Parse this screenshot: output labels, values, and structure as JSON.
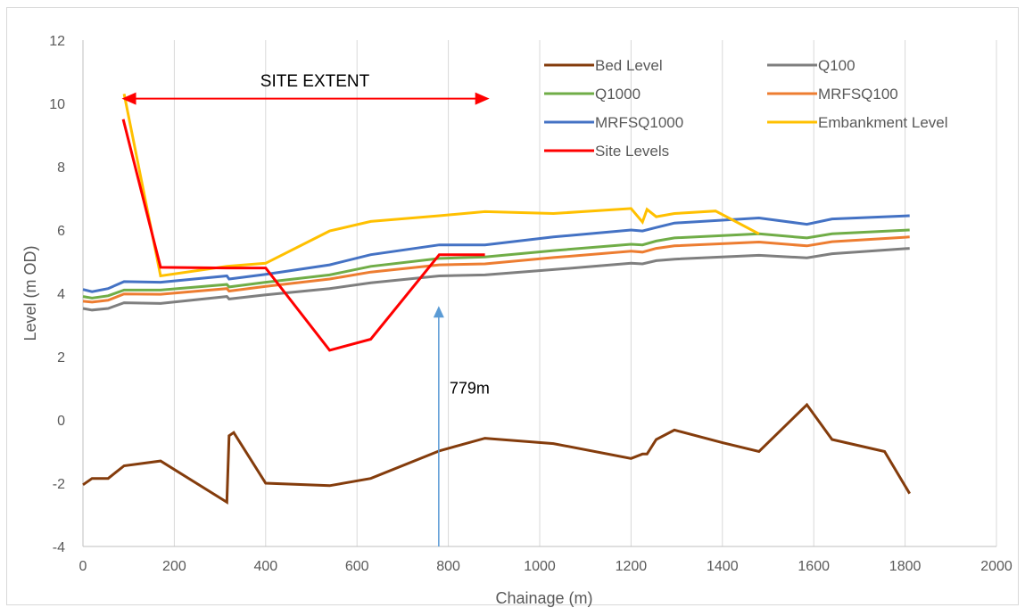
{
  "chart_data": {
    "type": "line",
    "xlabel": "Chainage (m)",
    "ylabel": "Level (m OD)",
    "xlim": [
      0,
      2000
    ],
    "ylim": [
      -4,
      12
    ],
    "x_ticks": [
      0,
      200,
      400,
      600,
      800,
      1000,
      1200,
      1400,
      1600,
      1800,
      2000
    ],
    "y_ticks": [
      -4,
      -2,
      0,
      2,
      4,
      6,
      8,
      10,
      12
    ],
    "grid": "vertical",
    "legend_placement": "top-right",
    "series": [
      {
        "name": "Bed Level",
        "color": "#843c0c",
        "points": [
          [
            0,
            -2.05
          ],
          [
            20,
            -1.85
          ],
          [
            55,
            -1.85
          ],
          [
            90,
            -1.45
          ],
          [
            170,
            -1.3
          ],
          [
            315,
            -2.6
          ],
          [
            320,
            -0.5
          ],
          [
            330,
            -0.4
          ],
          [
            400,
            -2.0
          ],
          [
            540,
            -2.08
          ],
          [
            630,
            -1.85
          ],
          [
            780,
            -0.98
          ],
          [
            880,
            -0.58
          ],
          [
            1030,
            -0.75
          ],
          [
            1200,
            -1.22
          ],
          [
            1225,
            -1.08
          ],
          [
            1235,
            -1.08
          ],
          [
            1255,
            -0.62
          ],
          [
            1295,
            -0.32
          ],
          [
            1400,
            -0.72
          ],
          [
            1480,
            -1.0
          ],
          [
            1585,
            0.48
          ],
          [
            1640,
            -0.62
          ],
          [
            1755,
            -1.0
          ],
          [
            1810,
            -2.33
          ]
        ]
      },
      {
        "name": "Q100",
        "color": "#7f7f7f",
        "points": [
          [
            0,
            3.52
          ],
          [
            20,
            3.47
          ],
          [
            55,
            3.52
          ],
          [
            90,
            3.7
          ],
          [
            170,
            3.68
          ],
          [
            315,
            3.9
          ],
          [
            320,
            3.82
          ],
          [
            400,
            3.95
          ],
          [
            540,
            4.15
          ],
          [
            630,
            4.33
          ],
          [
            780,
            4.55
          ],
          [
            880,
            4.58
          ],
          [
            1030,
            4.75
          ],
          [
            1200,
            4.95
          ],
          [
            1225,
            4.93
          ],
          [
            1255,
            5.03
          ],
          [
            1295,
            5.08
          ],
          [
            1480,
            5.2
          ],
          [
            1585,
            5.12
          ],
          [
            1640,
            5.25
          ],
          [
            1810,
            5.42
          ]
        ]
      },
      {
        "name": "Q1000",
        "color": "#70ad47",
        "points": [
          [
            0,
            3.9
          ],
          [
            20,
            3.85
          ],
          [
            55,
            3.92
          ],
          [
            90,
            4.1
          ],
          [
            170,
            4.1
          ],
          [
            315,
            4.28
          ],
          [
            320,
            4.2
          ],
          [
            400,
            4.35
          ],
          [
            540,
            4.58
          ],
          [
            630,
            4.85
          ],
          [
            780,
            5.1
          ],
          [
            880,
            5.15
          ],
          [
            1030,
            5.35
          ],
          [
            1200,
            5.55
          ],
          [
            1225,
            5.53
          ],
          [
            1255,
            5.65
          ],
          [
            1295,
            5.75
          ],
          [
            1480,
            5.88
          ],
          [
            1585,
            5.75
          ],
          [
            1640,
            5.88
          ],
          [
            1810,
            6.0
          ]
        ]
      },
      {
        "name": "MRFSQ100",
        "color": "#ed7d31",
        "points": [
          [
            0,
            3.75
          ],
          [
            20,
            3.72
          ],
          [
            55,
            3.78
          ],
          [
            90,
            3.98
          ],
          [
            170,
            3.97
          ],
          [
            315,
            4.15
          ],
          [
            320,
            4.07
          ],
          [
            400,
            4.22
          ],
          [
            540,
            4.45
          ],
          [
            630,
            4.67
          ],
          [
            780,
            4.9
          ],
          [
            880,
            4.93
          ],
          [
            1030,
            5.13
          ],
          [
            1200,
            5.33
          ],
          [
            1225,
            5.3
          ],
          [
            1255,
            5.42
          ],
          [
            1295,
            5.5
          ],
          [
            1480,
            5.62
          ],
          [
            1585,
            5.5
          ],
          [
            1640,
            5.63
          ],
          [
            1810,
            5.78
          ]
        ]
      },
      {
        "name": "MRFSQ1000",
        "color": "#4472c4",
        "points": [
          [
            0,
            4.12
          ],
          [
            20,
            4.05
          ],
          [
            55,
            4.15
          ],
          [
            90,
            4.37
          ],
          [
            170,
            4.35
          ],
          [
            315,
            4.55
          ],
          [
            320,
            4.45
          ],
          [
            400,
            4.6
          ],
          [
            540,
            4.9
          ],
          [
            630,
            5.22
          ],
          [
            780,
            5.53
          ],
          [
            880,
            5.53
          ],
          [
            1030,
            5.78
          ],
          [
            1200,
            6.0
          ],
          [
            1225,
            5.97
          ],
          [
            1255,
            6.08
          ],
          [
            1295,
            6.22
          ],
          [
            1480,
            6.38
          ],
          [
            1585,
            6.18
          ],
          [
            1640,
            6.35
          ],
          [
            1810,
            6.45
          ]
        ]
      },
      {
        "name": "Embankment Level",
        "color": "#ffc000",
        "points": [
          [
            90,
            10.3
          ],
          [
            170,
            4.55
          ],
          [
            315,
            4.85
          ],
          [
            400,
            4.95
          ],
          [
            540,
            5.97
          ],
          [
            630,
            6.27
          ],
          [
            780,
            6.45
          ],
          [
            880,
            6.58
          ],
          [
            1030,
            6.52
          ],
          [
            1200,
            6.68
          ],
          [
            1225,
            6.25
          ],
          [
            1235,
            6.65
          ],
          [
            1255,
            6.42
          ],
          [
            1295,
            6.52
          ],
          [
            1385,
            6.6
          ],
          [
            1480,
            5.88
          ]
        ]
      },
      {
        "name": "Site Levels",
        "color": "#ff0000",
        "points": [
          [
            88,
            9.5
          ],
          [
            170,
            4.82
          ],
          [
            315,
            4.8
          ],
          [
            400,
            4.8
          ],
          [
            540,
            2.2
          ],
          [
            630,
            2.55
          ],
          [
            780,
            5.22
          ],
          [
            880,
            5.22
          ]
        ]
      }
    ],
    "annotations": {
      "site_extent": {
        "label": "SITE EXTENT",
        "x_from": 85,
        "x_to": 890,
        "y": 10.15,
        "color": "#ff0000"
      },
      "chainage_marker": {
        "label": "779m",
        "x": 779,
        "y_from": -4,
        "y_to": 3.6,
        "color": "#5b9bd5"
      }
    }
  }
}
